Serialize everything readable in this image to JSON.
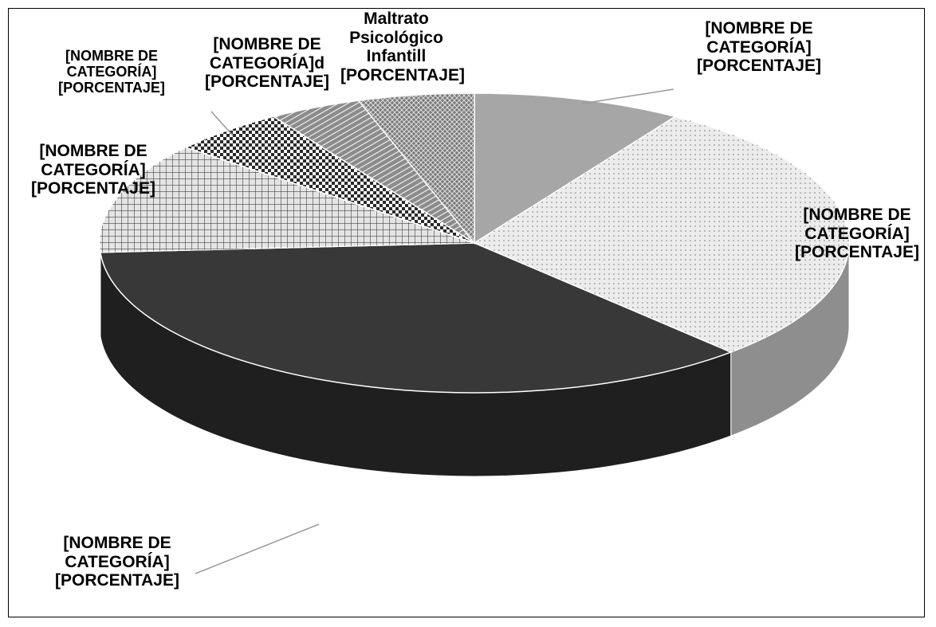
{
  "chart_data": {
    "type": "pie3d",
    "categories": [
      "[NOMBRE DE CATEGORÍA]",
      "[NOMBRE DE CATEGORÍA]",
      "[NOMBRE DE CATEGORÍA]",
      "[NOMBRE DE CATEGORÍA]",
      "[NOMBRE DE CATEGORÍA]",
      "[NOMBRE DE CATEGORÍA]d",
      "Maltrato Psicológico Infantill"
    ],
    "values": [
      9,
      29,
      36,
      12,
      5,
      4,
      5
    ],
    "value_labels": [
      "[PORCENTAJE]",
      "[PORCENTAJE]",
      "[PORCENTAJE]",
      "[PORCENTAJE]",
      "[PORCENTAJE]",
      "[PORCENTAJE]",
      "[PORCENTAJE]"
    ],
    "colors": [
      "#a6a6a6",
      "#ececec",
      "#383838",
      "#e4e4e4",
      "#2a2a2a",
      "#8c8c8c",
      "#7a7a7a"
    ]
  }
}
